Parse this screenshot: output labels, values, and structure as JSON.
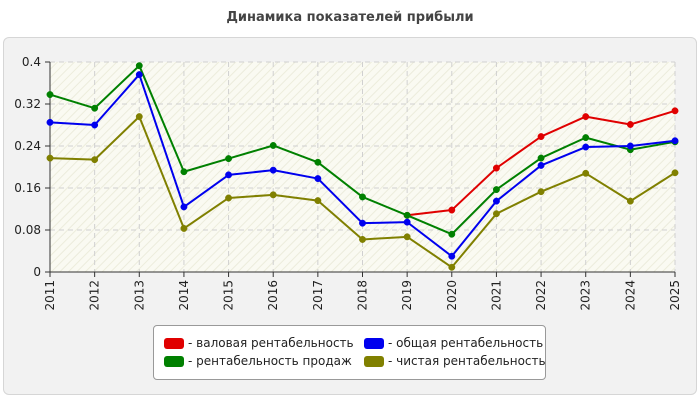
{
  "chart_data": {
    "type": "line",
    "title": "Динамика показателей прибыли",
    "xlabel": "",
    "ylabel": "",
    "x": [
      "2011",
      "2012",
      "2013",
      "2014",
      "2015",
      "2016",
      "2017",
      "2018",
      "2019",
      "2020",
      "2021",
      "2022",
      "2023",
      "2024",
      "2025"
    ],
    "y_ticks": [
      "0.4",
      "0.32",
      "0.24",
      "0.16",
      "0.08",
      "0"
    ],
    "ylim": [
      0,
      0.4
    ],
    "grid": true,
    "legend_position": "bottom",
    "series": [
      {
        "name": "- валовая рентабельность",
        "color": "#e00000",
        "values": [
          null,
          null,
          null,
          null,
          null,
          null,
          null,
          null,
          0.108,
          0.118,
          0.198,
          0.258,
          0.296,
          0.281,
          0.307
        ]
      },
      {
        "name": "- рентабельность продаж",
        "color": "#008000",
        "values": [
          0.338,
          0.312,
          0.393,
          0.191,
          0.216,
          0.241,
          0.209,
          0.143,
          0.108,
          0.072,
          0.157,
          0.217,
          0.256,
          0.233,
          0.248
        ]
      },
      {
        "name": "- общая рентабельность",
        "color": "#0000ee",
        "values": [
          0.285,
          0.28,
          0.376,
          0.124,
          0.185,
          0.194,
          0.178,
          0.093,
          0.095,
          0.03,
          0.135,
          0.203,
          0.238,
          0.24,
          0.25
        ]
      },
      {
        "name": "- чистая рентабельность",
        "color": "#808000",
        "values": [
          0.217,
          0.214,
          0.296,
          0.083,
          0.141,
          0.147,
          0.136,
          0.062,
          0.067,
          0.009,
          0.111,
          0.153,
          0.188,
          0.135,
          0.189
        ]
      }
    ]
  }
}
